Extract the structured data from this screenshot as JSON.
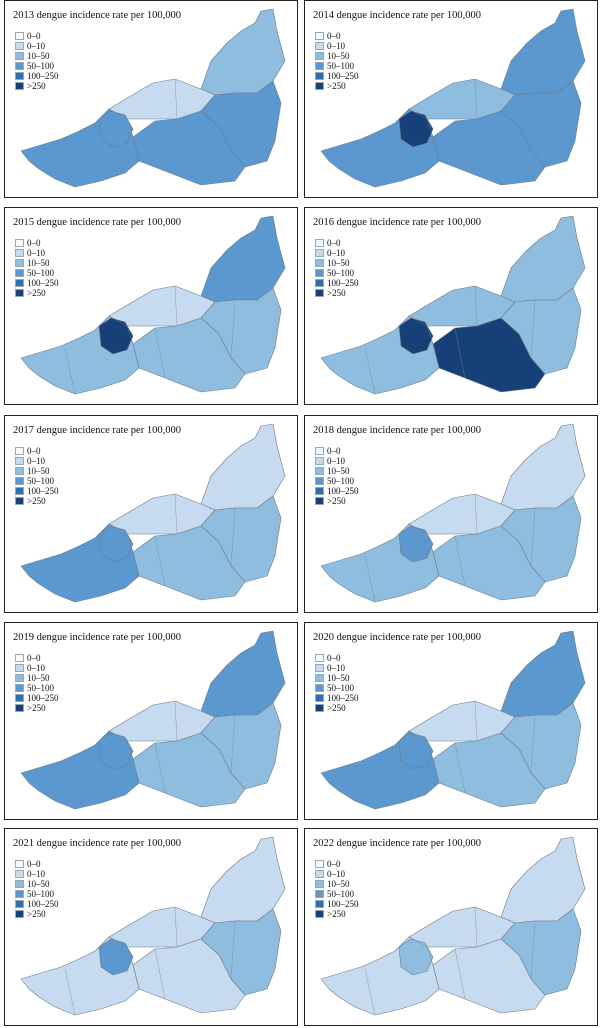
{
  "legend": {
    "bins": [
      {
        "label": "0–0",
        "color": "#f7fbff"
      },
      {
        "label": "0–10",
        "color": "#c6dbef"
      },
      {
        "label": "10–50",
        "color": "#8fbde0"
      },
      {
        "label": "50–100",
        "color": "#5a98cf"
      },
      {
        "label": "100–250",
        "color": "#2f6db0"
      },
      {
        "label": ">250",
        "color": "#173f78"
      }
    ]
  },
  "panels": [
    {
      "title": "2013 dengue incidence rate per 100,000",
      "level_north": 2,
      "level_center": 1,
      "level_east": 3,
      "level_southeast": 3,
      "level_west": 3,
      "level_hotspot": 3
    },
    {
      "title": "2014 dengue incidence rate per 100,000",
      "level_north": 3,
      "level_center": 2,
      "level_east": 3,
      "level_southeast": 3,
      "level_west": 3,
      "level_hotspot": 5
    },
    {
      "title": "2015 dengue incidence rate per 100,000",
      "level_north": 3,
      "level_center": 1,
      "level_east": 2,
      "level_southeast": 2,
      "level_west": 2,
      "level_hotspot": 5
    },
    {
      "title": "2016 dengue incidence rate per 100,000",
      "level_north": 2,
      "level_center": 2,
      "level_east": 2,
      "level_southeast": 5,
      "level_west": 2,
      "level_hotspot": 5
    },
    {
      "title": "2017 dengue incidence rate per 100,000",
      "level_north": 1,
      "level_center": 1,
      "level_east": 2,
      "level_southeast": 2,
      "level_west": 3,
      "level_hotspot": 3
    },
    {
      "title": "2018 dengue incidence rate per 100,000",
      "level_north": 1,
      "level_center": 1,
      "level_east": 2,
      "level_southeast": 2,
      "level_west": 2,
      "level_hotspot": 3
    },
    {
      "title": "2019 dengue incidence rate per 100,000",
      "level_north": 3,
      "level_center": 1,
      "level_east": 2,
      "level_southeast": 2,
      "level_west": 3,
      "level_hotspot": 3
    },
    {
      "title": "2020 dengue incidence rate per 100,000",
      "level_north": 3,
      "level_center": 1,
      "level_east": 2,
      "level_southeast": 2,
      "level_west": 3,
      "level_hotspot": 3
    },
    {
      "title": "2021 dengue incidence rate per 100,000",
      "level_north": 1,
      "level_center": 1,
      "level_east": 2,
      "level_southeast": 1,
      "level_west": 1,
      "level_hotspot": 3
    },
    {
      "title": "2022 dengue incidence rate per 100,000",
      "level_north": 1,
      "level_center": 1,
      "level_east": 2,
      "level_southeast": 1,
      "level_west": 1,
      "level_hotspot": 2
    }
  ]
}
